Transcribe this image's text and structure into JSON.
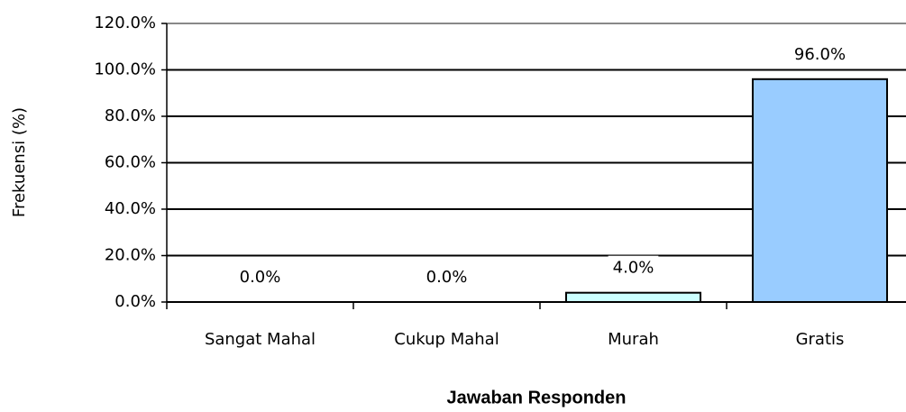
{
  "chart_data": {
    "type": "bar",
    "x_label": "Jawaban Responden",
    "y_label": "Frekuensi (%)",
    "categories": [
      "Sangat Mahal",
      "Cukup Mahal",
      "Murah",
      "Gratis"
    ],
    "values": [
      0,
      0,
      4,
      96
    ],
    "value_labels": [
      "0.0%",
      "0.0%",
      "4.0%",
      "96.0%"
    ],
    "colors": [
      "#ccffff",
      "#ccffff",
      "#ccffff",
      "#99ccff"
    ],
    "ylim": [
      0,
      120
    ],
    "yticks": [
      {
        "value": 0,
        "label": "0.0%"
      },
      {
        "value": 20,
        "label": "20.0%"
      },
      {
        "value": 40,
        "label": "40.0%"
      },
      {
        "value": 60,
        "label": "60.0%"
      },
      {
        "value": 80,
        "label": "80.0%"
      },
      {
        "value": 100,
        "label": "100.0%"
      },
      {
        "value": 120,
        "label": "120.0%"
      }
    ],
    "grid": true
  }
}
